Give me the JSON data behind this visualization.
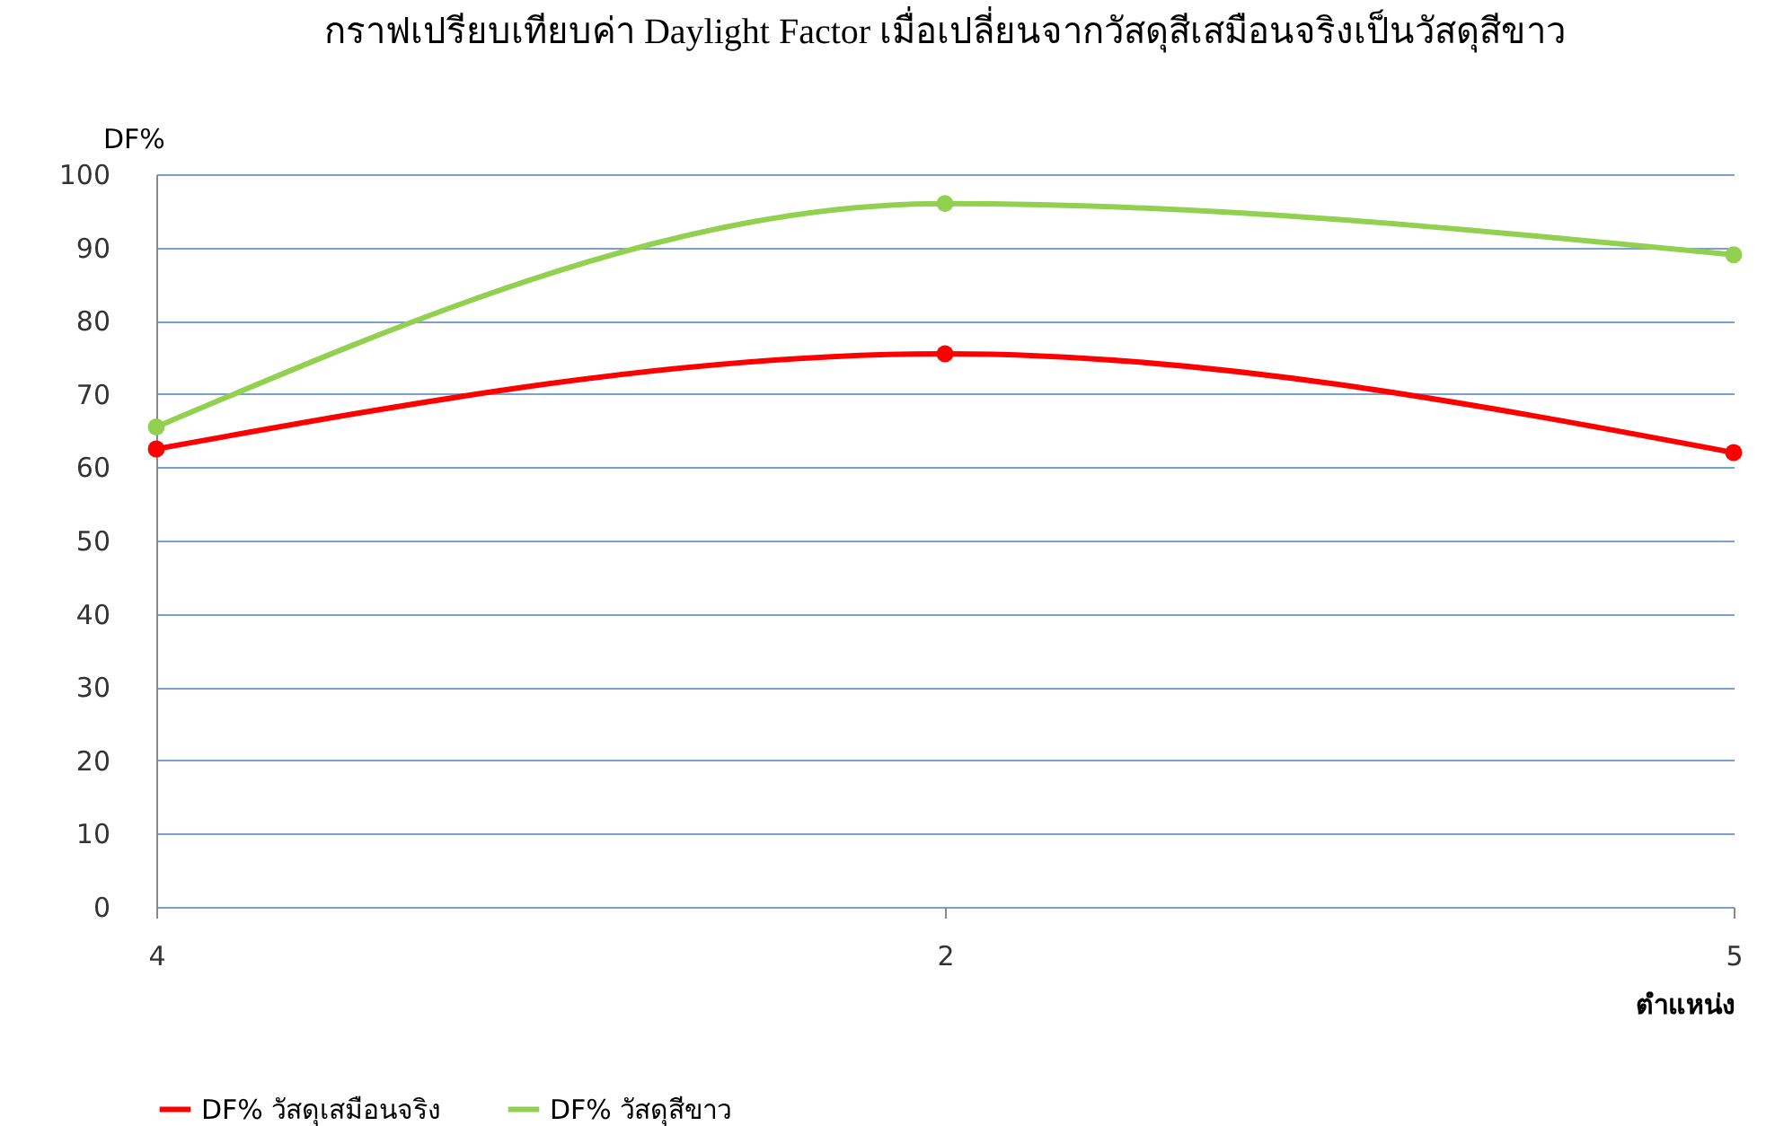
{
  "chart_data": {
    "type": "line",
    "title": "กราฟเปรียบเทียบค่า Daylight Factor เมื่อเปลี่ยนจากวัสดุสีเสมือนจริงเป็นวัสดุสีขาว",
    "xlabel": "ตำแหน่ง",
    "ylabel": "DF%",
    "categories": [
      "4",
      "2",
      "5"
    ],
    "series": [
      {
        "name": "DF% วัสดุเสมือนจริง",
        "color": "#ff0000",
        "values": [
          62.5,
          75.5,
          62
        ]
      },
      {
        "name": "DF% วัสดุสีขาว",
        "color": "#92d050",
        "values": [
          65.5,
          96,
          89
        ]
      }
    ],
    "ylim": [
      0,
      100
    ],
    "yticks": [
      0,
      10,
      20,
      30,
      40,
      50,
      60,
      70,
      80,
      90,
      100
    ],
    "grid": "y",
    "legend": "bottom",
    "marker": "circle",
    "line_style": "solid"
  }
}
